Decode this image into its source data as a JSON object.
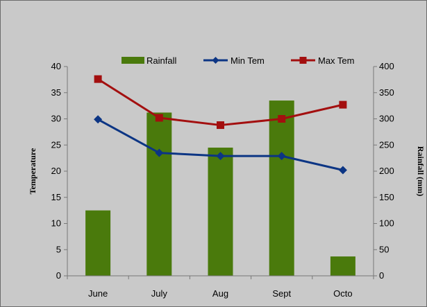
{
  "chart_data": {
    "type": "bar+line",
    "categories": [
      "June",
      "July",
      "Aug",
      "Sept",
      "Octo"
    ],
    "series": [
      {
        "name": "Rainfall",
        "type": "bar",
        "axis": "right",
        "color": "#4a7a0c",
        "values": [
          125,
          312,
          245,
          335,
          37
        ]
      },
      {
        "name": "Min Tem",
        "type": "line",
        "axis": "left",
        "color": "#0c3584",
        "marker": "diamond",
        "values": [
          29.9,
          23.5,
          22.9,
          22.9,
          20.2
        ]
      },
      {
        "name": "Max Tem",
        "type": "line",
        "axis": "left",
        "color": "#a30f0f",
        "marker": "square",
        "values": [
          37.6,
          30.2,
          28.8,
          30.0,
          32.7
        ]
      }
    ],
    "ylabel": "Temperature",
    "y2label": "Rainfall (mm)",
    "ylim": [
      0,
      40
    ],
    "y2lim": [
      0,
      400
    ],
    "yticks": [
      "0",
      "5",
      "10",
      "15",
      "20",
      "25",
      "30",
      "35",
      "40"
    ],
    "y2ticks": [
      "0",
      "50",
      "100",
      "150",
      "200",
      "250",
      "300",
      "350",
      "400"
    ],
    "grid": false,
    "legend": "top"
  }
}
